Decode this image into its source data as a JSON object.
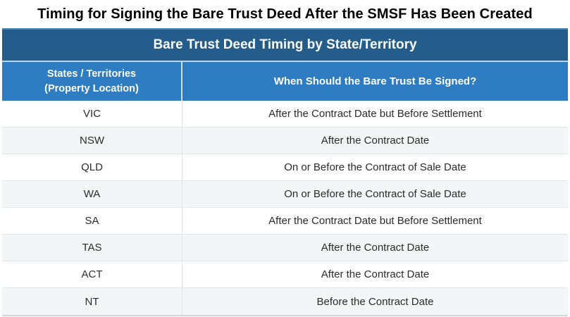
{
  "page_title": "Timing for Signing the Bare Trust Deed After the SMSF Has Been Created",
  "table": {
    "banner": "Bare Trust Deed Timing by State/Territory",
    "col1_line1": "States / Territories",
    "col1_line2": "(Property Location)",
    "col2": "When Should the Bare Trust Be Signed?",
    "rows": [
      {
        "state": "VIC",
        "timing": "After the Contract Date but Before Settlement"
      },
      {
        "state": "NSW",
        "timing": "After the Contract Date"
      },
      {
        "state": "QLD",
        "timing": "On or Before the Contract of Sale Date"
      },
      {
        "state": "WA",
        "timing": "On or Before the Contract of Sale Date"
      },
      {
        "state": "SA",
        "timing": "After the Contract Date but Before Settlement"
      },
      {
        "state": "TAS",
        "timing": "After the Contract Date"
      },
      {
        "state": "ACT",
        "timing": "After the Contract Date"
      },
      {
        "state": "NT",
        "timing": "Before the Contract Date"
      }
    ]
  },
  "colors": {
    "banner_bg": "#245d8c",
    "header_bg": "#2e7cc1",
    "alt_row_bg": "#f3f5f6",
    "row_border": "#e3e6e8",
    "title_text": "#000000",
    "cell_text": "#2b2b2b"
  },
  "chart_data": {
    "type": "table",
    "title": "Bare Trust Deed Timing by State/Territory",
    "columns": [
      "States / Territories (Property Location)",
      "When Should the Bare Trust Be Signed?"
    ],
    "rows": [
      [
        "VIC",
        "After the Contract Date but Before Settlement"
      ],
      [
        "NSW",
        "After the Contract Date"
      ],
      [
        "QLD",
        "On or Before the Contract of Sale Date"
      ],
      [
        "WA",
        "On or Before the Contract of Sale Date"
      ],
      [
        "SA",
        "After the Contract Date but Before Settlement"
      ],
      [
        "TAS",
        "After the Contract Date"
      ],
      [
        "ACT",
        "After the Contract Date"
      ],
      [
        "NT",
        "Before the Contract Date"
      ]
    ]
  }
}
